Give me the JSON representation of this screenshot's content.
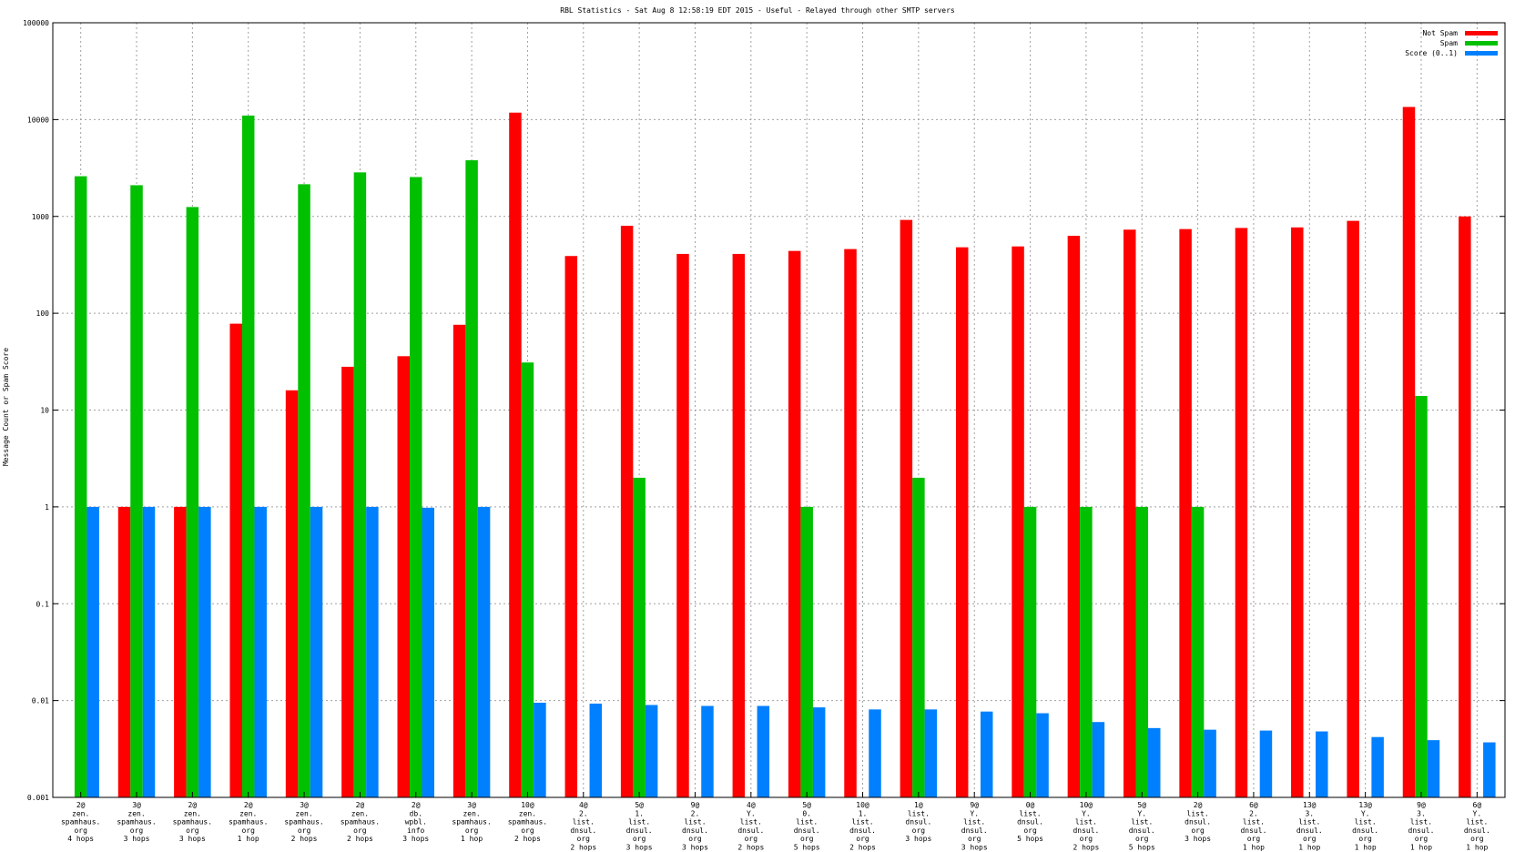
{
  "chart_data": {
    "type": "bar",
    "title": "RBL Statistics - Sat Aug  8 12:58:19 EDT 2015 - Useful - Relayed through other SMTP servers",
    "ylabel": "Message Count or Spam Score",
    "xlabel": "",
    "yscale": "log",
    "ylim": [
      0.001,
      100000
    ],
    "ytick_labels": [
      "0.001",
      "0.01",
      "0.1",
      "1",
      "10",
      "100",
      "1000",
      "10000",
      "100000"
    ],
    "grid": true,
    "legend_position": "top-right",
    "categories": [
      [
        "2@",
        "zen.",
        "spamhaus.",
        "org",
        "4 hops"
      ],
      [
        "3@",
        "zen.",
        "spamhaus.",
        "org",
        "3 hops"
      ],
      [
        "2@",
        "zen.",
        "spamhaus.",
        "org",
        "3 hops"
      ],
      [
        "2@",
        "zen.",
        "spamhaus.",
        "org",
        "1 hop"
      ],
      [
        "3@",
        "zen.",
        "spamhaus.",
        "org",
        "2 hops"
      ],
      [
        "2@",
        "zen.",
        "spamhaus.",
        "org",
        "2 hops"
      ],
      [
        "2@",
        "db.",
        "wpbl.",
        "info",
        "3 hops"
      ],
      [
        "3@",
        "zen.",
        "spamhaus.",
        "org",
        "1 hop"
      ],
      [
        "10@",
        "zen.",
        "spamhaus.",
        "org",
        "2 hops"
      ],
      [
        "4@",
        "2.",
        "list.",
        "dnsul.",
        "org",
        "2 hops"
      ],
      [
        "5@",
        "1.",
        "list.",
        "dnsul.",
        "org",
        "3 hops"
      ],
      [
        "9@",
        "2.",
        "list.",
        "dnsul.",
        "org",
        "3 hops"
      ],
      [
        "4@",
        "Y.",
        "list.",
        "dnsul.",
        "org",
        "2 hops"
      ],
      [
        "5@",
        "0.",
        "list.",
        "dnsul.",
        "org",
        "5 hops"
      ],
      [
        "10@",
        "1.",
        "list.",
        "dnsul.",
        "org",
        "2 hops"
      ],
      [
        "1@",
        "list.",
        "dnsul.",
        "org",
        "3 hops"
      ],
      [
        "9@",
        "Y.",
        "list.",
        "dnsul.",
        "org",
        "3 hops"
      ],
      [
        "0@",
        "list.",
        "dnsul.",
        "org",
        "5 hops"
      ],
      [
        "10@",
        "Y.",
        "list.",
        "dnsul.",
        "org",
        "2 hops"
      ],
      [
        "5@",
        "Y.",
        "list.",
        "dnsul.",
        "org",
        "5 hops"
      ],
      [
        "2@",
        "list.",
        "dnsul.",
        "org",
        "3 hops"
      ],
      [
        "6@",
        "2.",
        "list.",
        "dnsul.",
        "org",
        "1 hop"
      ],
      [
        "13@",
        "3.",
        "list.",
        "dnsul.",
        "org",
        "1 hop"
      ],
      [
        "13@",
        "Y.",
        "list.",
        "dnsul.",
        "org",
        "1 hop"
      ],
      [
        "9@",
        "3.",
        "list.",
        "dnsul.",
        "org",
        "1 hop"
      ],
      [
        "6@",
        "Y.",
        "list.",
        "dnsul.",
        "org",
        "1 hop"
      ]
    ],
    "series": [
      {
        "name": "Not Spam",
        "color": "#ff0000",
        "values": [
          null,
          1,
          1,
          78,
          16,
          28,
          36,
          76,
          11800,
          390,
          800,
          410,
          410,
          440,
          460,
          920,
          480,
          490,
          630,
          730,
          740,
          760,
          770,
          900,
          13500,
          1000
        ]
      },
      {
        "name": "Spam",
        "color": "#00c000",
        "values": [
          2600,
          2100,
          1250,
          11000,
          2150,
          2850,
          2550,
          3800,
          31,
          null,
          2,
          null,
          null,
          1,
          null,
          2,
          null,
          1,
          1,
          1,
          1,
          null,
          null,
          null,
          14,
          null
        ]
      },
      {
        "name": "Score (0..1)",
        "color": "#0080ff",
        "values": [
          1,
          1,
          1,
          1,
          1,
          1,
          0.98,
          1,
          0.0095,
          0.0093,
          0.009,
          0.0088,
          0.0088,
          0.0085,
          0.0081,
          0.0081,
          0.0077,
          0.0074,
          0.006,
          0.0052,
          0.005,
          0.0049,
          0.0048,
          0.0042,
          0.0039,
          0.0037
        ]
      }
    ]
  }
}
